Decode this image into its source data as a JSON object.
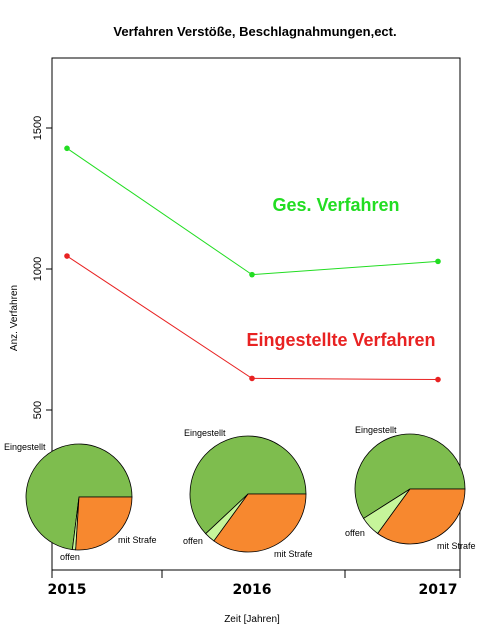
{
  "chart_data": [
    {
      "type": "line",
      "title": "Verfahren Verstöße, Beschlagnahmungen,ect.",
      "ylabel": "Anz. Verfahren",
      "xlabel": "Zeit [Jahren]",
      "x": [
        "2015",
        "2016",
        "2017"
      ],
      "yticks": [
        "500",
        "1000",
        "1500"
      ],
      "ylim": [
        500,
        1760
      ],
      "series": [
        {
          "name": "Ges. Verfahren",
          "color": "#22dd22",
          "values": [
            1428,
            980,
            1027
          ]
        },
        {
          "name": "Eingestellte Verfahren",
          "color": "#e82222",
          "values": [
            1046,
            612,
            608
          ]
        }
      ]
    },
    {
      "type": "pie",
      "year": "2015",
      "slices": [
        {
          "label": "Eingestellt",
          "value": 73,
          "color": "#7ebd4e"
        },
        {
          "label": "offen",
          "value": 1,
          "color": "#c6f59a"
        },
        {
          "label": "mit Strafe",
          "value": 26,
          "color": "#f7882f"
        }
      ]
    },
    {
      "type": "pie",
      "year": "2016",
      "slices": [
        {
          "label": "Eingestellt",
          "value": 62,
          "color": "#7ebd4e"
        },
        {
          "label": "offen",
          "value": 3,
          "color": "#c6f59a"
        },
        {
          "label": "mit Strafe",
          "value": 35,
          "color": "#f7882f"
        }
      ]
    },
    {
      "type": "pie",
      "year": "2017",
      "slices": [
        {
          "label": "Eingestellt",
          "value": 59,
          "color": "#7ebd4e"
        },
        {
          "label": "offen",
          "value": 6,
          "color": "#c6f59a"
        },
        {
          "label": "mit Strafe",
          "value": 35,
          "color": "#f7882f"
        }
      ]
    }
  ]
}
